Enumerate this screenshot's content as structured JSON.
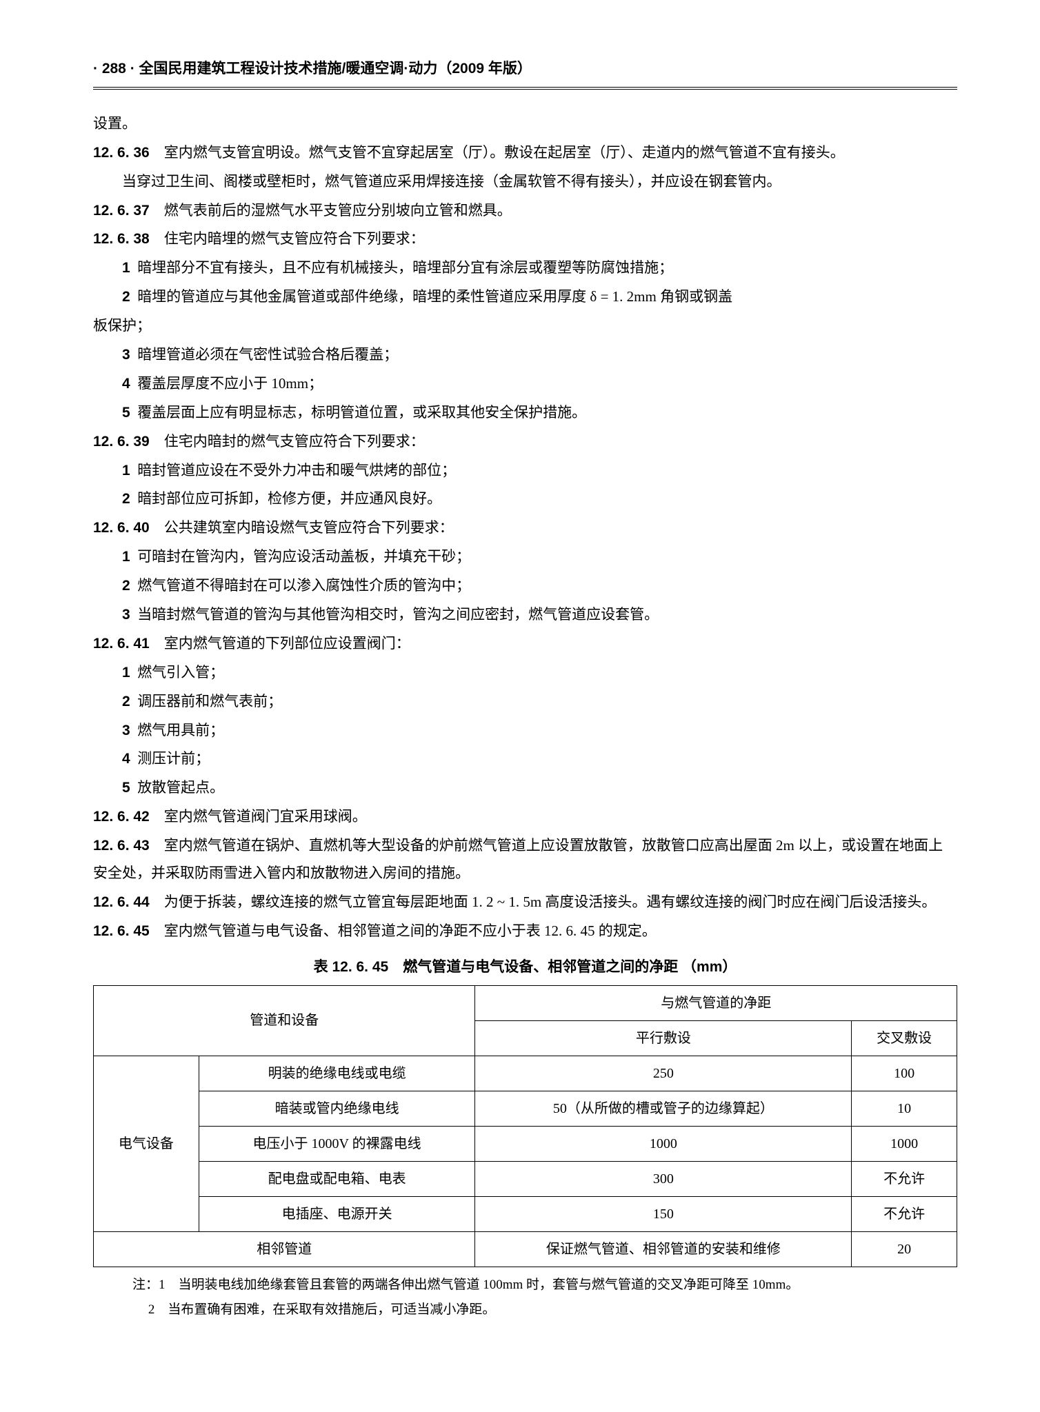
{
  "header": {
    "page_num": "· 288 ·",
    "title": "全国民用建筑工程设计技术措施/暖通空调·动力（2009 年版）"
  },
  "lines": {
    "l0": "设置。",
    "s36n": "12. 6. 36",
    "s36t": "　室内燃气支管宜明设。燃气支管不宜穿起居室（厅）。敷设在起居室（厅）、走道内的燃气管道不宜有接头。",
    "s36p1": "当穿过卫生间、阁楼或壁柜时，燃气管道应采用焊接连接（金属软管不得有接头），并应设在钢套管内。",
    "s37n": "12. 6. 37",
    "s37t": "　燃气表前后的湿燃气水平支管应分别坡向立管和燃具。",
    "s38n": "12. 6. 38",
    "s38t": "　住宅内暗埋的燃气支管应符合下列要求：",
    "s38_1": "暗埋部分不宜有接头，且不应有机械接头，暗埋部分宜有涂层或覆塑等防腐蚀措施；",
    "s38_2a": "暗埋的管道应与其他金属管道或部件绝缘，暗埋的柔性管道应采用厚度 δ = 1. 2mm 角钢或钢盖",
    "s38_2b": "板保护；",
    "s38_3": "暗埋管道必须在气密性试验合格后覆盖；",
    "s38_4": "覆盖层厚度不应小于 10mm；",
    "s38_5": "覆盖层面上应有明显标志，标明管道位置，或采取其他安全保护措施。",
    "s39n": "12. 6. 39",
    "s39t": "　住宅内暗封的燃气支管应符合下列要求：",
    "s39_1": "暗封管道应设在不受外力冲击和暖气烘烤的部位；",
    "s39_2": "暗封部位应可拆卸，检修方便，并应通风良好。",
    "s40n": "12. 6. 40",
    "s40t": "　公共建筑室内暗设燃气支管应符合下列要求：",
    "s40_1": "可暗封在管沟内，管沟应设活动盖板，并填充干砂；",
    "s40_2": "燃气管道不得暗封在可以渗入腐蚀性介质的管沟中；",
    "s40_3": "当暗封燃气管道的管沟与其他管沟相交时，管沟之间应密封，燃气管道应设套管。",
    "s41n": "12. 6. 41",
    "s41t": "　室内燃气管道的下列部位应设置阀门：",
    "s41_1": "燃气引入管；",
    "s41_2": "调压器前和燃气表前；",
    "s41_3": "燃气用具前；",
    "s41_4": "测压计前；",
    "s41_5": "放散管起点。",
    "s42n": "12. 6. 42",
    "s42t": "　室内燃气管道阀门宜采用球阀。",
    "s43n": "12. 6. 43",
    "s43t": "　室内燃气管道在锅炉、直燃机等大型设备的炉前燃气管道上应设置放散管，放散管口应高出屋面 2m 以上，或设置在地面上安全处，并采取防雨雪进入管内和放散物进入房间的措施。",
    "s44n": "12. 6. 44",
    "s44t": "　为便于拆装，螺纹连接的燃气立管宜每层距地面 1. 2 ~ 1. 5m 高度设活接头。遇有螺纹连接的阀门时应在阀门后设活接头。",
    "s45n": "12. 6. 45",
    "s45t": "　室内燃气管道与电气设备、相邻管道之间的净距不应小于表 12. 6. 45 的规定。"
  },
  "table": {
    "title": "表 12. 6. 45　燃气管道与电气设备、相邻管道之间的净距 （mm）",
    "h1": "管道和设备",
    "h2": "与燃气管道的净距",
    "h2a": "平行敷设",
    "h2b": "交叉敷设",
    "r1c1": "电气设备",
    "rows": {
      "r1": {
        "a": "明装的绝缘电线或电缆",
        "b": "250",
        "c": "100"
      },
      "r2": {
        "a": "暗装或管内绝缘电线",
        "b": "50（从所做的槽或管子的边缘算起）",
        "c": "10"
      },
      "r3": {
        "a": "电压小于 1000V 的裸露电线",
        "b": "1000",
        "c": "1000"
      },
      "r4": {
        "a": "配电盘或配电箱、电表",
        "b": "300",
        "c": "不允许"
      },
      "r5": {
        "a": "电插座、电源开关",
        "b": "150",
        "c": "不允许"
      }
    },
    "r6a": "相邻管道",
    "r6b": "保证燃气管道、相邻管道的安装和维修",
    "r6c": "20",
    "note1": "注：1　当明装电线加绝缘套管且套管的两端各伸出燃气管道 100mm 时，套管与燃气管道的交叉净距可降至 10mm。",
    "note2": "2　当布置确有困难，在采取有效措施后，可适当减小净距。"
  }
}
